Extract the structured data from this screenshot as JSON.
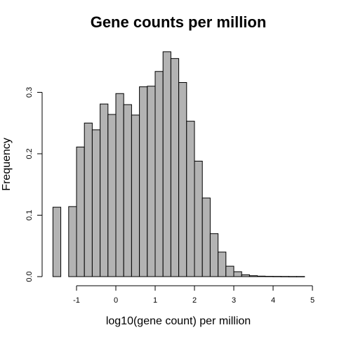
{
  "chart_data": {
    "type": "bar",
    "title": "Gene counts per million",
    "xlabel": "log10(gene count) per million",
    "ylabel": "Frequency",
    "xlim": [
      -1.6,
      4.8
    ],
    "ylim": [
      0,
      0.37
    ],
    "x_ticks": [
      -1,
      0,
      1,
      2,
      3,
      4,
      5
    ],
    "x_tick_labels": [
      "-1",
      "0",
      "1",
      "2",
      "3",
      "4",
      "5"
    ],
    "y_ticks": [
      0,
      0.1,
      0.2,
      0.3
    ],
    "y_tick_labels": [
      "0.0",
      "0.1",
      "0.2",
      "0.3"
    ],
    "bin_width": 0.2,
    "bins": [
      {
        "start": -1.6,
        "end": -1.4,
        "value": 0.113
      },
      {
        "start": -1.4,
        "end": -1.2,
        "value": 0.0
      },
      {
        "start": -1.2,
        "end": -1.0,
        "value": 0.114
      },
      {
        "start": -1.0,
        "end": -0.8,
        "value": 0.211
      },
      {
        "start": -0.8,
        "end": -0.6,
        "value": 0.25
      },
      {
        "start": -0.6,
        "end": -0.4,
        "value": 0.239
      },
      {
        "start": -0.4,
        "end": -0.2,
        "value": 0.281
      },
      {
        "start": -0.2,
        "end": 0.0,
        "value": 0.264
      },
      {
        "start": 0.0,
        "end": 0.2,
        "value": 0.298
      },
      {
        "start": 0.2,
        "end": 0.4,
        "value": 0.28
      },
      {
        "start": 0.4,
        "end": 0.6,
        "value": 0.263
      },
      {
        "start": 0.6,
        "end": 0.8,
        "value": 0.309
      },
      {
        "start": 0.8,
        "end": 1.0,
        "value": 0.31
      },
      {
        "start": 1.0,
        "end": 1.2,
        "value": 0.334
      },
      {
        "start": 1.2,
        "end": 1.4,
        "value": 0.366
      },
      {
        "start": 1.4,
        "end": 1.6,
        "value": 0.355
      },
      {
        "start": 1.6,
        "end": 1.8,
        "value": 0.316
      },
      {
        "start": 1.8,
        "end": 2.0,
        "value": 0.253
      },
      {
        "start": 2.0,
        "end": 2.2,
        "value": 0.188
      },
      {
        "start": 2.2,
        "end": 2.4,
        "value": 0.128
      },
      {
        "start": 2.4,
        "end": 2.6,
        "value": 0.07
      },
      {
        "start": 2.6,
        "end": 2.8,
        "value": 0.04
      },
      {
        "start": 2.8,
        "end": 3.0,
        "value": 0.017
      },
      {
        "start": 3.0,
        "end": 3.2,
        "value": 0.008
      },
      {
        "start": 3.2,
        "end": 3.4,
        "value": 0.003
      },
      {
        "start": 3.4,
        "end": 3.6,
        "value": 0.0015
      },
      {
        "start": 3.6,
        "end": 3.8,
        "value": 0.0008
      },
      {
        "start": 3.8,
        "end": 4.0,
        "value": 0.0005
      },
      {
        "start": 4.0,
        "end": 4.2,
        "value": 0.0004
      },
      {
        "start": 4.2,
        "end": 4.4,
        "value": 0.0003
      },
      {
        "start": 4.4,
        "end": 4.6,
        "value": 0.0002
      },
      {
        "start": 4.6,
        "end": 4.8,
        "value": 0.0002
      }
    ],
    "bar_fill": "#b3b3b3",
    "bar_stroke": "#000000",
    "grid": false,
    "legend": "none"
  }
}
